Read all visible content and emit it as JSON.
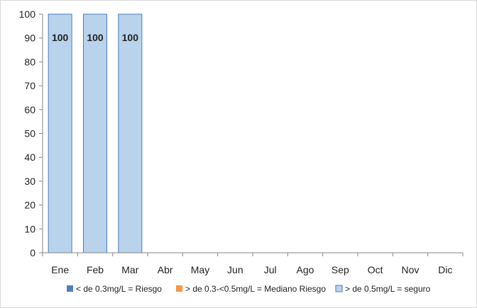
{
  "chart_data": {
    "type": "bar",
    "categories": [
      "Ene",
      "Feb",
      "Mar",
      "Abr",
      "May",
      "Jun",
      "Jul",
      "Ago",
      "Sep",
      "Oct",
      "Nov",
      "Dic"
    ],
    "series": [
      {
        "name": "< de 0.3mg/L = Riesgo",
        "color": "#4f81bd",
        "values": [
          0,
          0,
          0,
          0,
          0,
          0,
          0,
          0,
          0,
          0,
          0,
          0
        ]
      },
      {
        "name": "> de 0.3-<0.5mg/L = Mediano Riesgo",
        "color": "#f79646",
        "values": [
          0,
          0,
          0,
          0,
          0,
          0,
          0,
          0,
          0,
          0,
          0,
          0
        ]
      },
      {
        "name": "> de 0.5mg/L = seguro",
        "color": "#b9d3ec",
        "values": [
          100,
          100,
          100,
          null,
          null,
          null,
          null,
          null,
          null,
          null,
          null,
          null
        ]
      }
    ],
    "data_labels": [
      "100",
      "100",
      "100",
      "",
      "",
      "",
      "",
      "",
      "",
      "",
      "",
      ""
    ],
    "y_ticks": [
      "0",
      "10",
      "20",
      "30",
      "40",
      "50",
      "60",
      "70",
      "80",
      "90",
      "100"
    ],
    "ylim": [
      0,
      100
    ],
    "stacked": true,
    "grid": false,
    "legend_position": "bottom",
    "title": "",
    "xlabel": "",
    "ylabel": ""
  }
}
